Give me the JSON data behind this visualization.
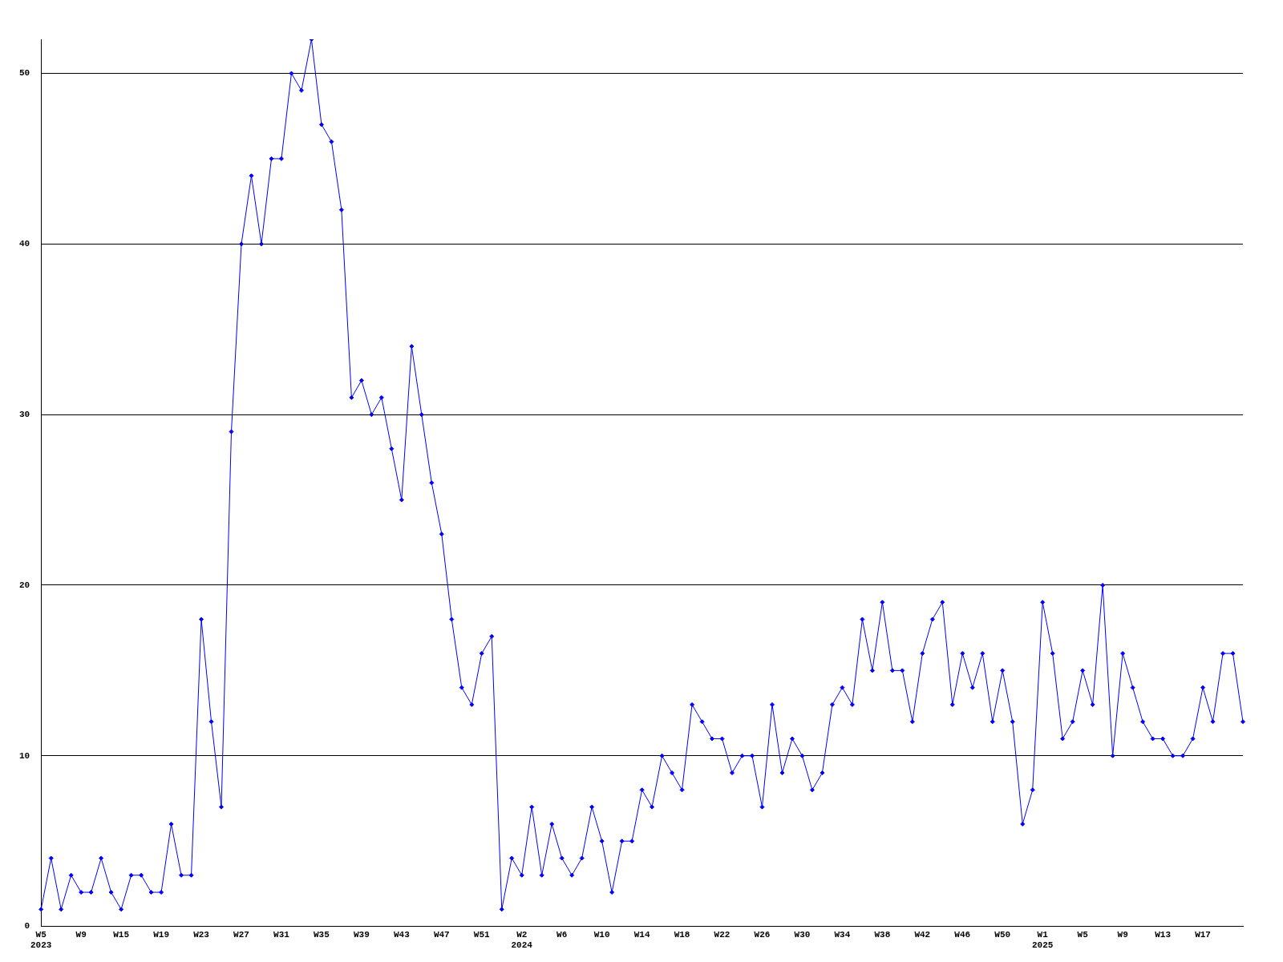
{
  "chart_data": {
    "type": "line",
    "categories": [
      "W5\n2023",
      null,
      null,
      null,
      "W9",
      null,
      null,
      null,
      "W15",
      null,
      null,
      null,
      "W19",
      null,
      null,
      null,
      "W23",
      null,
      null,
      null,
      "W27",
      null,
      null,
      null,
      "W31",
      null,
      null,
      null,
      "W35",
      null,
      null,
      null,
      "W39",
      null,
      null,
      null,
      "W43",
      null,
      null,
      null,
      "W47",
      null,
      null,
      null,
      "W51",
      null,
      null,
      null,
      "W2\n2024",
      null,
      null,
      null,
      "W6",
      null,
      null,
      null,
      "W10",
      null,
      null,
      null,
      "W14",
      null,
      null,
      null,
      "W18",
      null,
      null,
      null,
      "W22",
      null,
      null,
      null,
      "W26",
      null,
      null,
      null,
      "W30",
      null,
      null,
      null,
      "W34",
      null,
      null,
      null,
      "W38",
      null,
      null,
      null,
      "W42",
      null,
      null,
      null,
      "W46",
      null,
      null,
      null,
      "W50",
      null,
      null,
      null,
      "W1\n2025",
      null,
      null,
      null,
      "W5",
      null,
      null,
      null,
      "W9",
      null,
      null,
      null,
      "W13",
      null,
      null,
      null,
      "W17",
      null,
      null,
      null,
      null
    ],
    "series": [
      {
        "color": "#0000ff",
        "values": [
          1,
          4,
          1,
          3,
          2,
          2,
          4,
          2,
          1,
          3,
          3,
          2,
          2,
          6,
          3,
          3,
          18,
          12,
          7,
          29,
          40,
          44,
          40,
          45,
          45,
          50,
          49,
          52,
          47,
          46,
          42,
          31,
          32,
          30,
          31,
          28,
          25,
          34,
          30,
          26,
          23,
          18,
          14,
          13,
          16,
          17,
          1,
          4,
          3,
          7,
          3,
          6,
          4,
          3,
          4,
          7,
          5,
          2,
          5,
          5,
          8,
          7,
          10,
          9,
          8,
          13,
          12,
          11,
          11,
          9,
          10,
          10,
          7,
          13,
          9,
          11,
          10,
          8,
          9,
          13,
          14,
          13,
          18,
          15,
          19,
          15,
          15,
          12,
          16,
          18,
          19,
          13,
          16,
          14,
          16,
          12,
          15,
          12,
          6,
          8,
          19,
          16,
          11,
          12,
          15,
          13,
          20,
          10,
          16,
          14,
          12,
          11,
          11,
          10,
          10,
          11,
          14,
          12,
          16,
          16,
          12
        ]
      }
    ],
    "ylim": [
      0,
      52
    ],
    "yticks": [
      0,
      10,
      20,
      30,
      40,
      50
    ],
    "grid": "y",
    "marker": "diamond",
    "legend": false
  }
}
